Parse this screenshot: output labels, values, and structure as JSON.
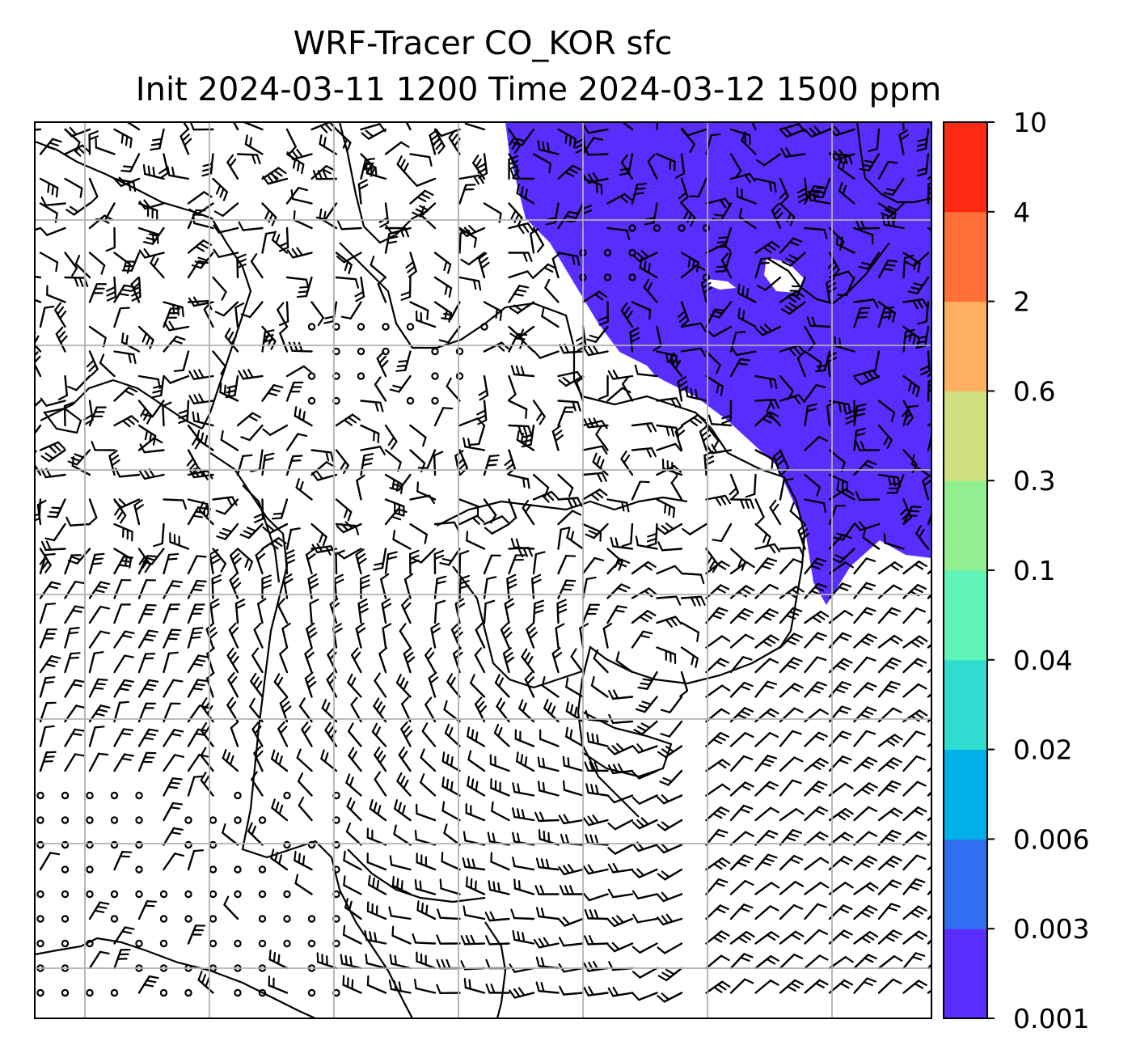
{
  "figure": {
    "title_line1": "WRF-Tracer CO_KOR sfc",
    "title_line2": "Init 2024-03-11 1200 Time 2024-03-12 1500 ppm"
  },
  "map": {
    "plume_color": "#5a2dff",
    "plume_description_level": "0.001",
    "gridlines": "on",
    "wind_barbs": "on"
  },
  "colorbar": {
    "labels": [
      "0.001",
      "0.003",
      "0.006",
      "0.02",
      "0.04",
      "0.1",
      "0.3",
      "0.6",
      "2",
      "4",
      "10"
    ],
    "colors": [
      "#5a2dff",
      "#3070f0",
      "#00b0e8",
      "#30dcd0",
      "#60f4b8",
      "#90f090",
      "#d0e080",
      "#fdb060",
      "#ff7038",
      "#ff2a14"
    ]
  }
}
